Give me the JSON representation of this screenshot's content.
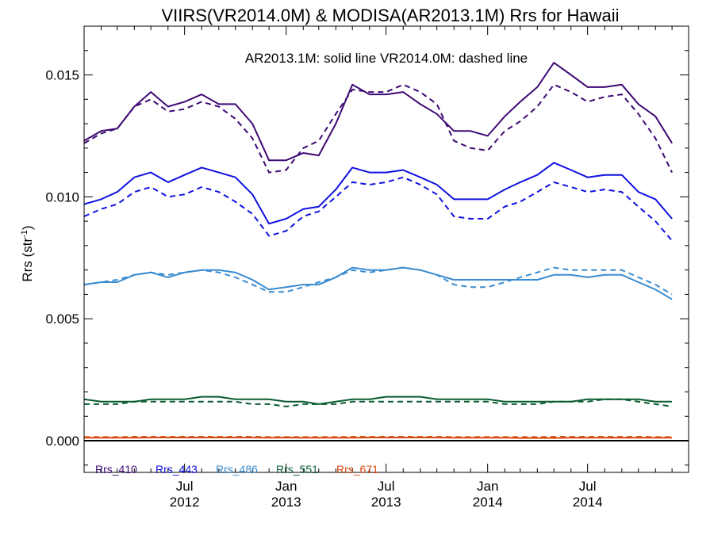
{
  "chart_data": {
    "type": "line",
    "title": "VIIRS(VR2014.0M) & MODISA(AR2013.1M)  Rrs for Hawaii",
    "annotation": "AR2013.1M: solid line   VR2014.0M: dashed line",
    "ylabel": "Rrs (str",
    "ylabel_sup": "-1",
    "ylabel_close": ")",
    "ylim": [
      -0.0013,
      0.017
    ],
    "xlim": [
      "2012-01-01",
      "2014-12-31"
    ],
    "y_ticks": [
      {
        "value": 0.0,
        "label": "0.000"
      },
      {
        "value": 0.005,
        "label": "0.005"
      },
      {
        "value": 0.01,
        "label": "0.010"
      },
      {
        "value": 0.015,
        "label": "0.015"
      }
    ],
    "x_ticks": [
      {
        "date": "2012-07-01",
        "month": "Jul",
        "year": "2012"
      },
      {
        "date": "2013-01-01",
        "month": "Jan",
        "year": "2013"
      },
      {
        "date": "2013-07-01",
        "month": "Jul",
        "year": "2013"
      },
      {
        "date": "2014-01-01",
        "month": "Jan",
        "year": "2014"
      },
      {
        "date": "2014-07-01",
        "month": "Jul",
        "year": "2014"
      }
    ],
    "x": [
      "2012-01-01",
      "2012-02-01",
      "2012-03-01",
      "2012-04-01",
      "2012-05-01",
      "2012-06-01",
      "2012-07-01",
      "2012-08-01",
      "2012-09-01",
      "2012-10-01",
      "2012-11-01",
      "2012-12-01",
      "2013-01-01",
      "2013-02-01",
      "2013-03-01",
      "2013-04-01",
      "2013-05-01",
      "2013-06-01",
      "2013-07-01",
      "2013-08-01",
      "2013-09-01",
      "2013-10-01",
      "2013-11-01",
      "2013-12-01",
      "2014-01-01",
      "2014-02-01",
      "2014-03-01",
      "2014-04-01",
      "2014-05-01",
      "2014-06-01",
      "2014-07-01",
      "2014-08-01",
      "2014-09-01",
      "2014-10-01",
      "2014-11-01",
      "2014-12-01"
    ],
    "legend_placement": "bottom-left",
    "series": [
      {
        "name": "Rrs_410",
        "sensor": "AR2013.1M",
        "style": "solid",
        "color": "#3d0a73",
        "values": [
          0.0123,
          0.0127,
          0.0128,
          0.0137,
          0.0143,
          0.0137,
          0.0139,
          0.0142,
          0.0138,
          0.0138,
          0.013,
          0.0115,
          0.0115,
          0.0118,
          0.0117,
          0.013,
          0.0146,
          0.0142,
          0.0142,
          0.0143,
          0.0138,
          0.0134,
          0.0127,
          0.0127,
          0.0125,
          0.0133,
          0.0139,
          0.0145,
          0.0155,
          0.015,
          0.0145,
          0.0145,
          0.0146,
          0.0138,
          0.0133,
          0.0122
        ]
      },
      {
        "name": "Rrs_410",
        "sensor": "VR2014.0M",
        "style": "dashed",
        "color": "#3d0a73",
        "values": [
          0.0122,
          0.0126,
          0.0128,
          0.0137,
          0.014,
          0.0135,
          0.0136,
          0.0139,
          0.0137,
          0.0132,
          0.0124,
          0.011,
          0.0111,
          0.012,
          0.0123,
          0.0134,
          0.0144,
          0.0143,
          0.0143,
          0.0146,
          0.0143,
          0.0138,
          0.0123,
          0.012,
          0.0119,
          0.0127,
          0.0131,
          0.0137,
          0.0146,
          0.0143,
          0.0139,
          0.0141,
          0.0142,
          0.0134,
          0.0124,
          0.011
        ]
      },
      {
        "name": "Rrs_443",
        "sensor": "AR2013.1M",
        "style": "solid",
        "color": "#1010e0",
        "values": [
          0.0097,
          0.0099,
          0.0102,
          0.0108,
          0.011,
          0.0106,
          0.0109,
          0.0112,
          0.011,
          0.0108,
          0.0101,
          0.0089,
          0.0091,
          0.0095,
          0.0096,
          0.0103,
          0.0112,
          0.011,
          0.011,
          0.0111,
          0.0108,
          0.0105,
          0.0099,
          0.0099,
          0.0099,
          0.0103,
          0.0106,
          0.0109,
          0.0114,
          0.0111,
          0.0108,
          0.0109,
          0.0109,
          0.0102,
          0.0099,
          0.0091
        ]
      },
      {
        "name": "Rrs_443",
        "sensor": "VR2014.0M",
        "style": "dashed",
        "color": "#1010e0",
        "values": [
          0.0092,
          0.0095,
          0.0097,
          0.0102,
          0.0104,
          0.01,
          0.0101,
          0.0104,
          0.0102,
          0.0098,
          0.0093,
          0.0084,
          0.0086,
          0.0092,
          0.0094,
          0.01,
          0.0106,
          0.0105,
          0.0106,
          0.0108,
          0.0105,
          0.0101,
          0.0092,
          0.0091,
          0.0091,
          0.0096,
          0.0098,
          0.0102,
          0.0106,
          0.0104,
          0.0102,
          0.0103,
          0.0102,
          0.0096,
          0.009,
          0.0082
        ]
      },
      {
        "name": "Rrs_486",
        "sensor": "AR2013.1M",
        "style": "solid",
        "color": "#3a8cd0",
        "values": [
          0.0064,
          0.0065,
          0.0065,
          0.0068,
          0.0069,
          0.0067,
          0.0069,
          0.007,
          0.007,
          0.0069,
          0.0066,
          0.0062,
          0.0063,
          0.0064,
          0.0064,
          0.0067,
          0.0071,
          0.007,
          0.007,
          0.0071,
          0.007,
          0.0068,
          0.0066,
          0.0066,
          0.0066,
          0.0066,
          0.0066,
          0.0066,
          0.0068,
          0.0068,
          0.0067,
          0.0068,
          0.0068,
          0.0065,
          0.0062,
          0.0058
        ]
      },
      {
        "name": "Rrs_486",
        "sensor": "VR2014.0M",
        "style": "dashed",
        "color": "#3a8cd0",
        "values": [
          0.0064,
          0.0065,
          0.0066,
          0.0068,
          0.0069,
          0.0068,
          0.0069,
          0.007,
          0.0069,
          0.0067,
          0.0064,
          0.0061,
          0.0061,
          0.0063,
          0.0065,
          0.0067,
          0.007,
          0.0069,
          0.007,
          0.0071,
          0.007,
          0.0068,
          0.0064,
          0.0063,
          0.0063,
          0.0065,
          0.0067,
          0.0069,
          0.0071,
          0.007,
          0.007,
          0.007,
          0.007,
          0.0067,
          0.0064,
          0.006
        ]
      },
      {
        "name": "Rrs_551",
        "sensor": "AR2013.1M",
        "style": "solid",
        "color": "#0a5c32",
        "values": [
          0.0017,
          0.0016,
          0.0016,
          0.0016,
          0.0017,
          0.0017,
          0.0017,
          0.0018,
          0.0018,
          0.0017,
          0.0017,
          0.0017,
          0.0016,
          0.0016,
          0.0015,
          0.0016,
          0.0017,
          0.0017,
          0.0018,
          0.0018,
          0.0018,
          0.0017,
          0.0017,
          0.0017,
          0.0017,
          0.0016,
          0.0016,
          0.0016,
          0.0016,
          0.0016,
          0.0017,
          0.0017,
          0.0017,
          0.0017,
          0.0016,
          0.0016
        ]
      },
      {
        "name": "Rrs_551",
        "sensor": "VR2014.0M",
        "style": "dashed",
        "color": "#0a5c32",
        "values": [
          0.0015,
          0.0015,
          0.0015,
          0.0016,
          0.0016,
          0.0016,
          0.0016,
          0.0016,
          0.0016,
          0.0016,
          0.0015,
          0.0015,
          0.0014,
          0.0015,
          0.0015,
          0.0015,
          0.0016,
          0.0016,
          0.0016,
          0.0016,
          0.0016,
          0.0016,
          0.0016,
          0.0016,
          0.0016,
          0.0015,
          0.0015,
          0.0015,
          0.0016,
          0.0016,
          0.0016,
          0.0017,
          0.0017,
          0.0016,
          0.0015,
          0.0014
        ]
      },
      {
        "name": "Rrs_671",
        "sensor": "AR2013.1M",
        "style": "solid",
        "color": "#d64a10",
        "values": [
          0.00012,
          0.00012,
          0.00012,
          0.00012,
          0.00013,
          0.00013,
          0.00013,
          0.00013,
          0.00013,
          0.00013,
          0.00013,
          0.00012,
          0.00013,
          0.00012,
          0.00012,
          0.00012,
          0.00012,
          0.00013,
          0.00013,
          0.00013,
          0.00013,
          0.00013,
          0.00012,
          0.00012,
          0.00012,
          0.00012,
          0.00011,
          0.00011,
          0.00011,
          0.00012,
          0.00012,
          0.00012,
          0.00012,
          0.00012,
          0.00012,
          0.00012
        ]
      },
      {
        "name": "Rrs_671",
        "sensor": "VR2014.0M",
        "style": "dashed",
        "color": "#d64a10",
        "values": [
          0.00015,
          0.00015,
          0.00015,
          0.00016,
          0.00016,
          0.00016,
          0.00016,
          0.00016,
          0.00016,
          0.00016,
          0.00016,
          0.00015,
          0.00015,
          0.00015,
          0.00015,
          0.00015,
          0.00016,
          0.00016,
          0.00016,
          0.00016,
          0.00016,
          0.00016,
          0.00015,
          0.00015,
          0.00015,
          0.00015,
          0.00015,
          0.00015,
          0.00016,
          0.00016,
          0.00016,
          0.00016,
          0.00016,
          0.00016,
          0.00015,
          0.00015
        ]
      }
    ],
    "legend": [
      {
        "label": "Rrs_410",
        "color": "#3d0a73"
      },
      {
        "label": "Rrs_443",
        "color": "#1010e0"
      },
      {
        "label": "Rrs_486",
        "color": "#3a8cd0"
      },
      {
        "label": "Rrs_551",
        "color": "#0a5c32"
      },
      {
        "label": "Rrs_671",
        "color": "#d64a10"
      }
    ]
  }
}
